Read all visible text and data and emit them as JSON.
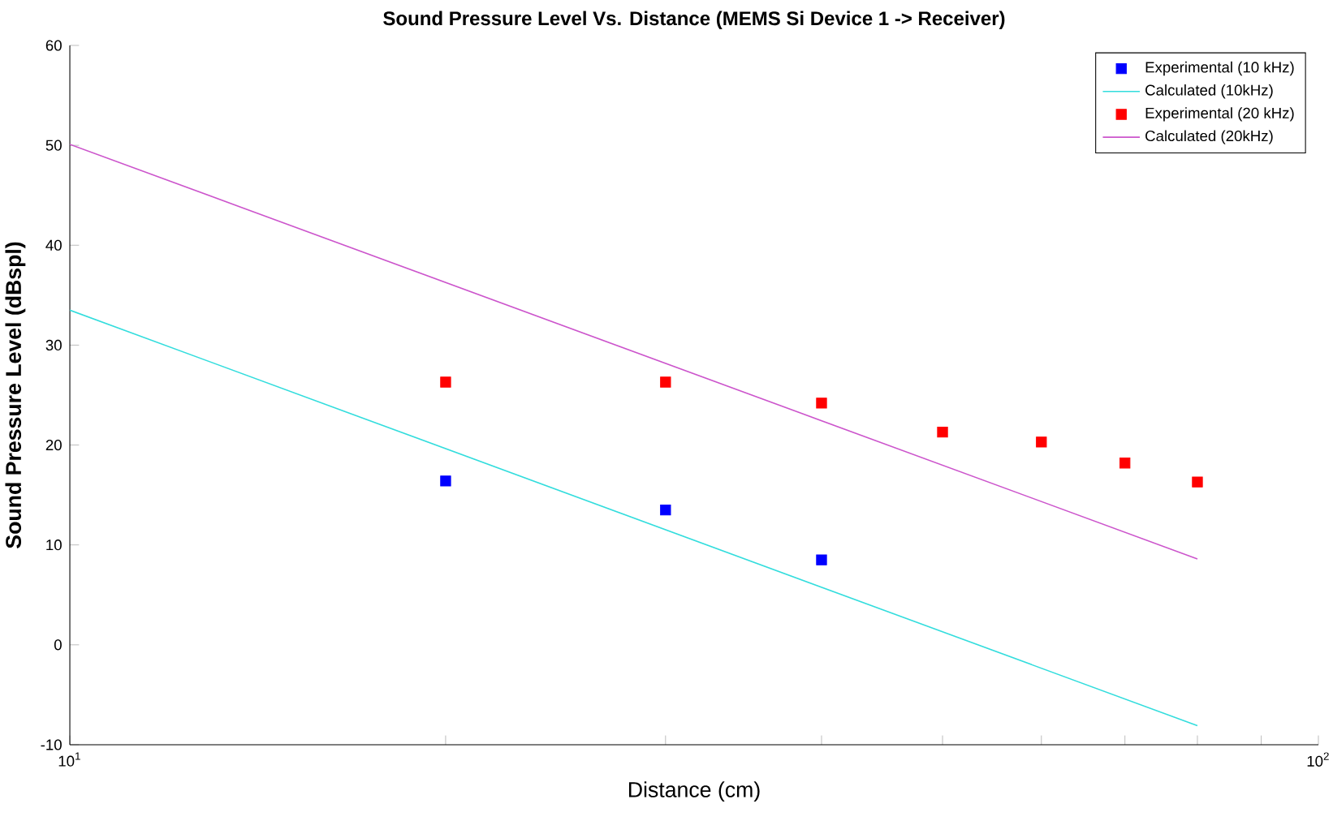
{
  "chart_data": {
    "type": "scatter",
    "title": "Sound Pressure Level Vs. Distance (MEMS Si Device 1 -> Receiver)",
    "xlabel": "Distance (cm)",
    "ylabel": "Sound Pressure Level (dBspl)",
    "log": "x",
    "xlim": [
      10,
      100
    ],
    "ylim": [
      -10,
      60
    ],
    "xticks": [
      {
        "value": 10,
        "label": "10$^{1}$"
      },
      {
        "value": 20,
        "label": null
      },
      {
        "value": 30,
        "label": null
      },
      {
        "value": 40,
        "label": null
      },
      {
        "value": 50,
        "label": null
      },
      {
        "value": 60,
        "label": null
      },
      {
        "value": 70,
        "label": null
      },
      {
        "value": 80,
        "label": null
      },
      {
        "value": 90,
        "label": null
      },
      {
        "value": 100,
        "label": "10$^{2}$"
      }
    ],
    "yticks": [
      -10,
      0,
      10,
      20,
      30,
      40,
      50,
      60
    ],
    "legend": "top right",
    "grid": false,
    "series": [
      {
        "name": "Experimental (10 kHz)",
        "marker": "square",
        "color": "#0000ff",
        "x": [
          20,
          30,
          40
        ],
        "values": [
          16.4,
          13.5,
          8.5
        ]
      },
      {
        "name": "Calculated (10kHz)",
        "type": "line",
        "marker": "none",
        "color": "#33dddd",
        "x": [
          10,
          80
        ],
        "values": [
          33.5,
          -8.1
        ]
      },
      {
        "name": "Experimental (20 kHz)",
        "marker": "square",
        "color": "#ff0000",
        "x": [
          20,
          30,
          40,
          50,
          60,
          70,
          80
        ],
        "values": [
          26.3,
          26.3,
          24.2,
          21.3,
          20.3,
          18.2,
          16.3
        ]
      },
      {
        "name": "Calculated (20kHz)",
        "type": "line",
        "marker": "none",
        "color": "#cc55cc",
        "x": [
          10,
          80
        ],
        "values": [
          50.1,
          8.6
        ]
      }
    ]
  }
}
